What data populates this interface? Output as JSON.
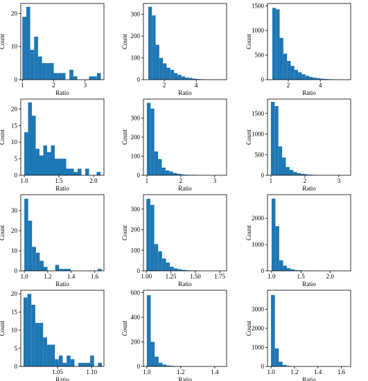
{
  "chart_data": [
    {
      "type": "histogram",
      "xlabel": "Ratio",
      "ylabel": "Count",
      "color": "#1f77b4",
      "bins": [
        1,
        1.125,
        1.25,
        1.375,
        1.5,
        1.625,
        1.75,
        1.875,
        2,
        2.125,
        2.25,
        2.375,
        2.5,
        2.625,
        2.75,
        2.875,
        3,
        3.125,
        3.25,
        3.375,
        3.5
      ],
      "counts": [
        19,
        22,
        9,
        13,
        7,
        5,
        5,
        5,
        2,
        2,
        2,
        0,
        3,
        1,
        0,
        0,
        0,
        1,
        1,
        2
      ],
      "xlim": [
        0.95,
        3.6
      ],
      "ylim": [
        0,
        23
      ],
      "xticks": [
        1,
        2,
        3
      ],
      "yticks": [
        0,
        10,
        20
      ]
    },
    {
      "type": "histogram",
      "xlabel": "Ratio",
      "ylabel": "Count",
      "color": "#1f77b4",
      "bins": [
        1,
        1.23,
        1.46,
        1.69,
        1.92,
        2.15,
        2.38,
        2.61,
        2.84,
        3.07,
        3.3,
        3.53,
        3.76,
        3.99,
        4.22,
        4.45,
        4.68,
        4.91,
        5.14,
        5.37,
        5.6
      ],
      "counts": [
        335,
        295,
        160,
        100,
        75,
        55,
        45,
        30,
        22,
        15,
        10,
        8,
        5,
        3,
        2,
        1,
        1,
        0,
        0,
        1
      ],
      "xlim": [
        0.7,
        5.9
      ],
      "ylim": [
        0,
        350
      ],
      "xticks": [
        2,
        4
      ],
      "yticks": [
        0,
        100,
        200,
        300
      ]
    },
    {
      "type": "histogram",
      "xlabel": "Ratio",
      "ylabel": "Count",
      "color": "#1f77b4",
      "bins": [
        1,
        1.23,
        1.46,
        1.69,
        1.92,
        2.15,
        2.38,
        2.61,
        2.84,
        3.07,
        3.3,
        3.53,
        3.76,
        3.99,
        4.22,
        4.45,
        4.68,
        4.91,
        5.14,
        5.37,
        5.6
      ],
      "counts": [
        1460,
        1430,
        850,
        530,
        380,
        280,
        200,
        150,
        110,
        80,
        55,
        40,
        30,
        20,
        15,
        10,
        7,
        5,
        3,
        2
      ],
      "xlim": [
        0.7,
        5.9
      ],
      "ylim": [
        0,
        1550
      ],
      "xticks": [
        2,
        4
      ],
      "yticks": [
        0,
        500,
        1000,
        1500
      ]
    },
    {
      "type": "histogram",
      "xlabel": "Ratio",
      "ylabel": "Count",
      "color": "#1f77b4",
      "bins": [
        1,
        1.055,
        1.11,
        1.165,
        1.22,
        1.275,
        1.33,
        1.385,
        1.44,
        1.495,
        1.55,
        1.605,
        1.66,
        1.715,
        1.77,
        1.825,
        1.88,
        1.935,
        1.99,
        2.045,
        2.1
      ],
      "counts": [
        13,
        22,
        18,
        8,
        6,
        9,
        7,
        9,
        5,
        5,
        5,
        2,
        2,
        1,
        2,
        0,
        2,
        0,
        0,
        1
      ],
      "xlim": [
        0.95,
        2.15
      ],
      "ylim": [
        0,
        23
      ],
      "xticks": [
        {
          "value": 1,
          "label": "1.0"
        },
        1.5,
        {
          "value": 2,
          "label": "2.0"
        }
      ],
      "yticks": [
        0,
        5,
        10,
        15,
        20
      ]
    },
    {
      "type": "histogram",
      "xlabel": "Ratio",
      "ylabel": "Count",
      "color": "#1f77b4",
      "bins": [
        1,
        1.11,
        1.22,
        1.33,
        1.44,
        1.55,
        1.66,
        1.77,
        1.88,
        1.99,
        2.1,
        2.21,
        2.32,
        2.43,
        2.54,
        2.65,
        2.76,
        2.87,
        2.98,
        3.09,
        3.2
      ],
      "counts": [
        380,
        350,
        125,
        85,
        40,
        25,
        20,
        12,
        8,
        5,
        3,
        2,
        2,
        1,
        1,
        0,
        0,
        0,
        0,
        1
      ],
      "xlim": [
        0.9,
        3.35
      ],
      "ylim": [
        0,
        400
      ],
      "xticks": [
        1,
        2,
        3
      ],
      "yticks": [
        0,
        100,
        200,
        300
      ]
    },
    {
      "type": "histogram",
      "xlabel": "Ratio",
      "ylabel": "Count",
      "color": "#1f77b4",
      "bins": [
        1,
        1.11,
        1.22,
        1.33,
        1.44,
        1.55,
        1.66,
        1.77,
        1.88,
        1.99,
        2.1,
        2.21,
        2.32,
        2.43,
        2.54,
        2.65,
        2.76,
        2.87,
        2.98,
        3.09,
        3.2
      ],
      "counts": [
        1780,
        1680,
        700,
        430,
        200,
        130,
        80,
        50,
        35,
        25,
        15,
        10,
        7,
        5,
        3,
        2,
        1,
        1,
        1,
        1
      ],
      "xlim": [
        0.9,
        3.35
      ],
      "ylim": [
        0,
        1850
      ],
      "xticks": [
        1,
        2,
        3
      ],
      "yticks": [
        0,
        500,
        1000,
        1500
      ]
    },
    {
      "type": "histogram",
      "xlabel": "Ratio",
      "ylabel": "Count",
      "color": "#1f77b4",
      "bins": [
        1,
        1.033,
        1.066,
        1.099,
        1.132,
        1.165,
        1.198,
        1.231,
        1.264,
        1.297,
        1.33,
        1.363,
        1.396,
        1.429,
        1.462,
        1.495,
        1.528,
        1.561,
        1.594,
        1.627,
        1.66
      ],
      "counts": [
        36,
        25,
        12,
        9,
        5,
        2,
        0,
        0,
        3,
        1,
        1,
        1,
        0,
        0,
        0,
        0,
        0,
        0,
        0,
        1
      ],
      "xlim": [
        0.97,
        1.68
      ],
      "ylim": [
        0,
        38
      ],
      "xticks": [
        {
          "value": 1,
          "label": "1.0"
        },
        1.2,
        1.4,
        1.6
      ],
      "yticks": [
        0,
        10,
        20,
        30
      ]
    },
    {
      "type": "histogram",
      "xlabel": "Ratio",
      "ylabel": "Count",
      "color": "#1f77b4",
      "bins": [
        1,
        1.04,
        1.08,
        1.12,
        1.16,
        1.2,
        1.24,
        1.28,
        1.32,
        1.36,
        1.4,
        1.44,
        1.48,
        1.52,
        1.56,
        1.6,
        1.64,
        1.68,
        1.72,
        1.76,
        1.8
      ],
      "counts": [
        350,
        320,
        130,
        95,
        60,
        40,
        20,
        12,
        8,
        5,
        3,
        2,
        1,
        1,
        0,
        0,
        0,
        0,
        0,
        1
      ],
      "xlim": [
        0.97,
        1.82
      ],
      "ylim": [
        0,
        370
      ],
      "xticks": [
        {
          "value": 1,
          "label": "1.00"
        },
        1.25,
        {
          "value": 1.5,
          "label": "1.50"
        },
        1.75
      ],
      "yticks": [
        0,
        100,
        200,
        300
      ]
    },
    {
      "type": "histogram",
      "xlabel": "Ratio",
      "ylabel": "Count",
      "color": "#1f77b4",
      "bins": [
        1,
        1.065,
        1.13,
        1.195,
        1.26,
        1.325,
        1.39,
        1.455,
        1.52,
        1.585,
        1.65,
        1.715,
        1.78,
        1.845,
        1.91,
        1.975,
        2.04,
        2.105,
        2.17,
        2.235,
        2.3
      ],
      "counts": [
        2750,
        1700,
        400,
        200,
        100,
        60,
        30,
        20,
        12,
        8,
        5,
        3,
        2,
        1,
        1,
        1,
        0,
        0,
        0,
        1
      ],
      "xlim": [
        0.93,
        2.35
      ],
      "ylim": [
        0,
        2900
      ],
      "xticks": [
        {
          "value": 1,
          "label": "1.0"
        },
        1.5,
        {
          "value": 2,
          "label": "2.0"
        }
      ],
      "yticks": [
        0,
        1000,
        2000
      ]
    },
    {
      "type": "histogram",
      "xlabel": "Ratio",
      "ylabel": "Count",
      "color": "#1f77b4",
      "bins": [
        1,
        1.00575,
        1.0115,
        1.01725,
        1.023,
        1.02875,
        1.0345,
        1.04025,
        1.046,
        1.05175,
        1.0575,
        1.06325,
        1.069,
        1.07475,
        1.0805,
        1.08625,
        1.092,
        1.09775,
        1.1035,
        1.10925,
        1.115
      ],
      "counts": [
        19,
        20,
        17,
        12,
        12,
        8,
        6,
        6,
        2,
        3,
        1,
        3,
        2,
        0,
        1,
        1,
        1,
        3,
        0,
        1
      ],
      "xlim": [
        0.996,
        1.118
      ],
      "ylim": [
        0,
        21
      ],
      "xticks": [
        1.05,
        {
          "value": 1.1,
          "label": "1.10"
        }
      ],
      "yticks": [
        0,
        5,
        10,
        15,
        20
      ]
    },
    {
      "type": "histogram",
      "xlabel": "Ratio",
      "ylabel": "Count",
      "color": "#1f77b4",
      "bins": [
        1,
        1.023,
        1.046,
        1.069,
        1.092,
        1.115,
        1.138,
        1.161,
        1.184,
        1.207,
        1.23,
        1.253,
        1.276,
        1.299,
        1.322,
        1.345,
        1.368,
        1.391,
        1.414,
        1.437,
        1.46
      ],
      "counts": [
        580,
        200,
        80,
        30,
        15,
        8,
        5,
        3,
        2,
        1,
        1,
        0,
        0,
        0,
        0,
        0,
        0,
        0,
        0,
        1
      ],
      "xlim": [
        0.98,
        1.47
      ],
      "ylim": [
        0,
        620
      ],
      "xticks": [
        {
          "value": 1,
          "label": "1.0"
        },
        1.2,
        1.4
      ],
      "yticks": [
        0,
        200,
        400,
        600
      ]
    },
    {
      "type": "histogram",
      "xlabel": "Ratio",
      "ylabel": "Count",
      "color": "#1f77b4",
      "bins": [
        1,
        1.033,
        1.066,
        1.099,
        1.132,
        1.165,
        1.198,
        1.231,
        1.264,
        1.297,
        1.33,
        1.363,
        1.396,
        1.429,
        1.462,
        1.495,
        1.528,
        1.561,
        1.594,
        1.627,
        1.66
      ],
      "counts": [
        3750,
        950,
        250,
        80,
        30,
        15,
        8,
        5,
        3,
        2,
        1,
        1,
        0,
        0,
        0,
        0,
        0,
        0,
        0,
        1
      ],
      "xlim": [
        0.97,
        1.68
      ],
      "ylim": [
        0,
        4000
      ],
      "xticks": [
        {
          "value": 1,
          "label": "1.0"
        },
        1.2,
        1.4,
        1.6
      ],
      "yticks": [
        0,
        1000,
        2000,
        3000
      ]
    }
  ]
}
